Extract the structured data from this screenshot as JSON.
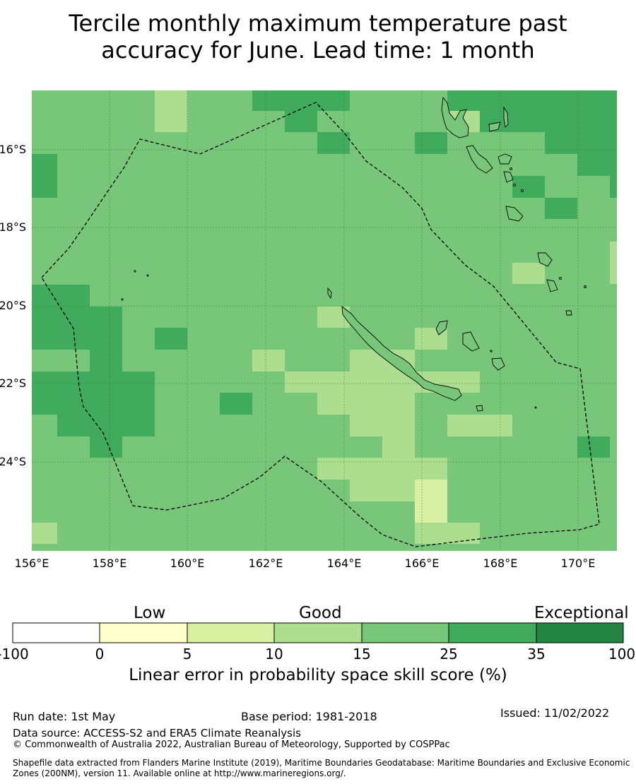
{
  "title_line1": "Tercile monthly maximum temperature past",
  "title_line2": "accuracy for June. Lead time: 1 month",
  "map": {
    "lon_range": [
      156,
      171
    ],
    "lat_range": [
      -26.3,
      -14.5
    ],
    "lon_ticks": [
      "156°E",
      "158°E",
      "160°E",
      "162°E",
      "164°E",
      "166°E",
      "168°E",
      "170°E"
    ],
    "lat_ticks": [
      "16°S",
      "18°S",
      "20°S",
      "22°S",
      "24°S"
    ],
    "grid": true,
    "colors": {
      "c5_10": "#d9f0a3",
      "c10_15": "#addd8e",
      "c15_25": "#78c679",
      "c25_35": "#41ab5d",
      "coast": "#000000"
    }
  },
  "colorbar": {
    "categories": [
      "Low",
      "Good",
      "Exceptional"
    ],
    "ticks": [
      "-100",
      "0",
      "5",
      "10",
      "15",
      "25",
      "35",
      "100"
    ],
    "colors": [
      "#ffffff",
      "#ffffcc",
      "#d9f0a3",
      "#addd8e",
      "#78c679",
      "#41ab5d",
      "#238443"
    ],
    "label": "Linear error in probability space skill score (%)"
  },
  "footer": {
    "run_date": "Run date: 1st May",
    "base_period": "Base period: 1981-2018",
    "issued": "Issued: 11/02/2022",
    "data_source": "Data source: ACCESS-S2 and ERA5 Climate Reanalysis",
    "copyright": "© Commonwealth of Australia 2022, Australian Bureau of Meteorology, Supported by COSPPac",
    "shapefile": "Shapefile data extracted from Flanders Marine Institute (2019), Maritime Boundaries Geodatabase: Maritime Boundaries and Exclusive Economic Zones (200NM), version 11. Available online at http://www.marineregions.org/."
  }
}
